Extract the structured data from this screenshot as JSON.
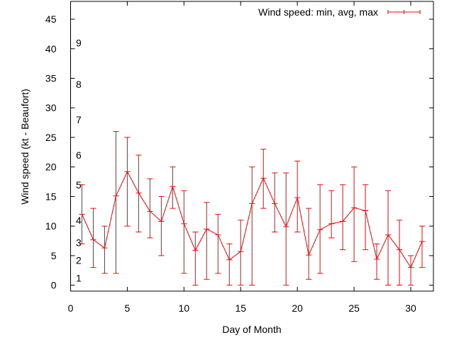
{
  "chart_data": {
    "type": "line",
    "title": "",
    "xlabel": "Day of Month",
    "ylabel": "Wind speed (kt - Beaufort)",
    "xlim": [
      0,
      32
    ],
    "ylim": [
      -1,
      48
    ],
    "xticks": [
      0,
      5,
      10,
      15,
      20,
      25,
      30
    ],
    "yticks": [
      0,
      5,
      10,
      15,
      20,
      25,
      30,
      35,
      40,
      45
    ],
    "grid": false,
    "legend": {
      "placement": "top-right",
      "entries": [
        "Wind speed: min, avg, max"
      ]
    },
    "series_color": "#ff0000",
    "series": [
      {
        "name": "Wind speed: min, avg, max",
        "x": [
          1,
          2,
          3,
          4,
          5,
          6,
          7,
          8,
          9,
          10,
          11,
          12,
          13,
          14,
          15,
          16,
          17,
          18,
          19,
          20,
          21,
          22,
          23,
          24,
          25,
          26,
          27,
          28,
          29,
          30,
          31
        ],
        "avg": [
          12.0,
          7.7,
          6.3,
          15.1,
          19.2,
          15.6,
          12.5,
          10.8,
          16.7,
          10.4,
          5.9,
          9.5,
          8.5,
          4.3,
          5.7,
          13.8,
          18.1,
          13.8,
          9.9,
          14.8,
          5.1,
          9.4,
          10.4,
          10.8,
          13.1,
          12.6,
          4.4,
          8.5,
          6.0,
          3.0,
          7.4
        ],
        "min": [
          7,
          3,
          2,
          2,
          10,
          9,
          8,
          5,
          13,
          2,
          0,
          1,
          2,
          0,
          0,
          0,
          13,
          9,
          0,
          9,
          1,
          2,
          8,
          6,
          4,
          6,
          1,
          0,
          0,
          0,
          3
        ],
        "max": [
          17,
          13,
          10,
          26,
          25,
          22,
          18,
          15,
          20,
          16,
          9,
          14,
          12,
          7,
          11,
          20,
          23,
          19,
          19,
          21,
          13,
          17,
          16,
          17,
          20,
          17,
          7,
          16,
          11,
          5,
          10
        ]
      }
    ],
    "annotations": [
      {
        "text": "1",
        "y": 1.2
      },
      {
        "text": "2",
        "y": 4.2
      },
      {
        "text": "3",
        "y": 7.2
      },
      {
        "text": "4",
        "y": 11
      },
      {
        "text": "5",
        "y": 17
      },
      {
        "text": "6",
        "y": 22
      },
      {
        "text": "7",
        "y": 28
      },
      {
        "text": "8",
        "y": 34
      },
      {
        "text": "9",
        "y": 41
      }
    ]
  }
}
